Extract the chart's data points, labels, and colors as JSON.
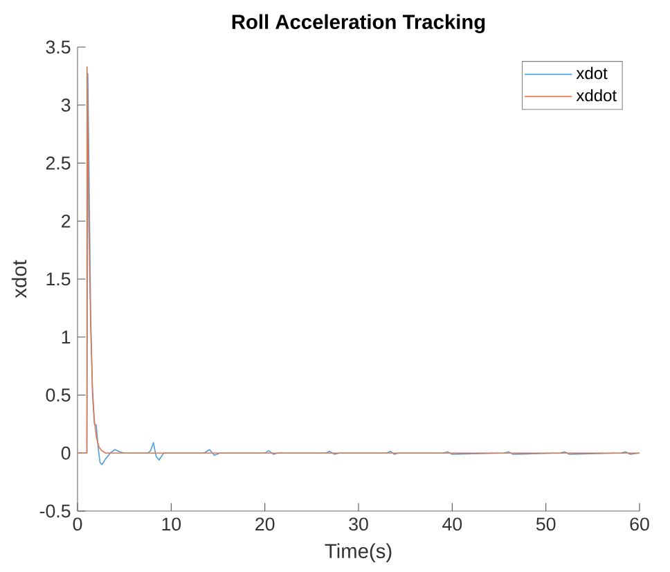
{
  "chart_data": {
    "type": "line",
    "title": "Roll Acceleration Tracking",
    "xlabel": "Time(s)",
    "ylabel": "xdot",
    "xlim": [
      0,
      60
    ],
    "ylim": [
      -0.5,
      3.5
    ],
    "xticks": [
      0,
      10,
      20,
      30,
      40,
      50,
      60
    ],
    "yticks": [
      -0.5,
      0,
      0.5,
      1,
      1.5,
      2,
      2.5,
      3,
      3.5
    ],
    "legend": "top right",
    "grid": false,
    "series": [
      {
        "name": "xdot",
        "color": "#4d9fdc",
        "x": [
          0,
          1.0,
          1.1,
          1.2,
          1.4,
          1.6,
          1.8,
          2.0,
          2.2,
          2.4,
          2.6,
          3.0,
          3.5,
          4.0,
          4.5,
          5,
          7.5,
          7.8,
          8.1,
          8.4,
          8.7,
          9.2,
          10,
          13.5,
          14.1,
          14.6,
          15.2,
          16,
          20,
          20.4,
          20.9,
          21.4,
          26.5,
          26.9,
          27.4,
          28,
          33,
          33.4,
          33.8,
          34.3,
          39,
          39.5,
          40,
          45.5,
          46,
          46.5,
          51.5,
          52,
          52.5,
          58,
          58.5,
          59,
          60
        ],
        "values": [
          0,
          0,
          3.27,
          2.6,
          1.2,
          0.5,
          0.25,
          0.24,
          0.05,
          -0.08,
          -0.1,
          -0.05,
          0,
          0.03,
          0.01,
          0,
          0,
          0.02,
          0.09,
          -0.03,
          -0.06,
          0,
          0,
          0,
          0.03,
          -0.02,
          0,
          0,
          0,
          0.02,
          -0.01,
          0,
          0,
          0.015,
          -0.01,
          0,
          0,
          0.015,
          -0.01,
          0,
          0,
          0.01,
          -0.01,
          0,
          0.01,
          -0.01,
          0,
          0.01,
          -0.01,
          0,
          0.01,
          -0.01,
          0
        ]
      },
      {
        "name": "xddot",
        "color": "#e8764a",
        "x": [
          0,
          1.0,
          1.02,
          1.2,
          1.4,
          1.6,
          1.8,
          2.0,
          2.3,
          2.6,
          3.0,
          60
        ],
        "values": [
          0,
          0,
          3.33,
          2.0,
          1.1,
          0.55,
          0.28,
          0.14,
          0.05,
          0.02,
          0,
          0
        ]
      }
    ]
  }
}
